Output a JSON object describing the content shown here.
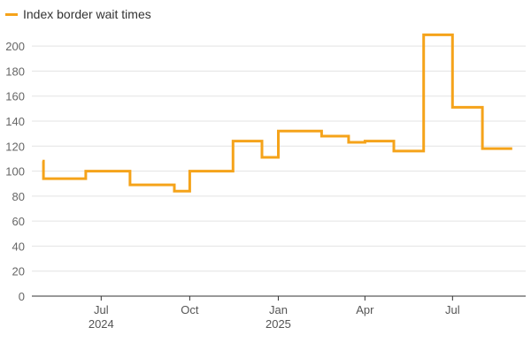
{
  "chart_data": {
    "type": "line",
    "step": "post",
    "series": [
      {
        "name": "Index border wait times",
        "color": "#f5a31a",
        "points": [
          [
            "2024-05-01",
            108
          ],
          [
            "2024-05-02",
            94
          ],
          [
            "2024-06-15",
            100
          ],
          [
            "2024-07-31",
            89
          ],
          [
            "2024-09-15",
            84
          ],
          [
            "2024-10-01",
            100
          ],
          [
            "2024-11-15",
            124
          ],
          [
            "2024-12-15",
            111
          ],
          [
            "2025-01-01",
            132
          ],
          [
            "2025-02-15",
            128
          ],
          [
            "2025-03-15",
            123
          ],
          [
            "2025-04-01",
            124
          ],
          [
            "2025-05-01",
            116
          ],
          [
            "2025-06-01",
            209
          ],
          [
            "2025-07-01",
            151
          ],
          [
            "2025-08-01",
            118
          ],
          [
            "2025-09-01",
            118
          ]
        ]
      }
    ],
    "x_range": [
      "2024-04-20",
      "2025-09-15"
    ],
    "xticks": [
      {
        "date": "2024-07-01",
        "label": "Jul",
        "sublabel": "2024"
      },
      {
        "date": "2024-10-01",
        "label": "Oct",
        "sublabel": ""
      },
      {
        "date": "2025-01-01",
        "label": "Jan",
        "sublabel": "2025"
      },
      {
        "date": "2025-04-01",
        "label": "Apr",
        "sublabel": ""
      },
      {
        "date": "2025-07-01",
        "label": "Jul",
        "sublabel": ""
      }
    ],
    "ylim": [
      0,
      210
    ],
    "yticks": [
      0,
      20,
      40,
      60,
      80,
      100,
      120,
      140,
      160,
      180,
      200
    ],
    "grid": true,
    "legend": "top-left"
  }
}
